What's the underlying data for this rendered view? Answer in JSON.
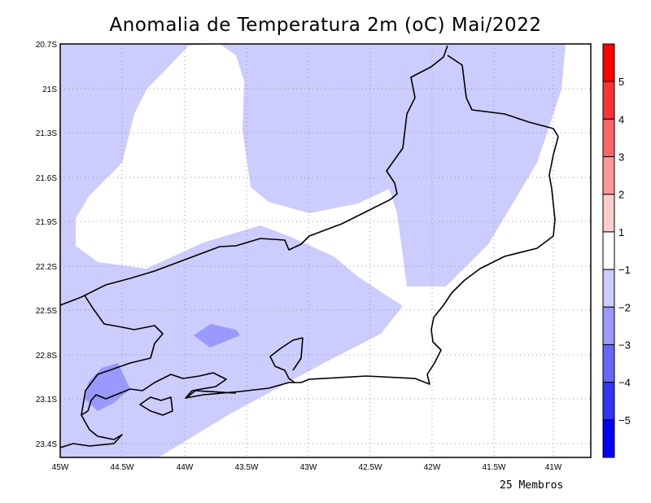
{
  "title": "Anomalia de Temperatura 2m (oC) Mai/2022",
  "footer_note": "25 Membros",
  "map": {
    "lon_range": [
      -45,
      -40.7
    ],
    "lat_range": [
      -23.5,
      -20.7
    ],
    "x_ticks": [
      "45W",
      "44.5W",
      "44W",
      "43.5W",
      "43W",
      "42.5W",
      "42W",
      "41.5W",
      "41W"
    ],
    "y_ticks": [
      "20.7S",
      "21S",
      "21.3S",
      "21.6S",
      "21.9S",
      "22.2S",
      "22.5S",
      "22.8S",
      "23.1S",
      "23.4S"
    ]
  },
  "colorbar": {
    "labels": [
      "5",
      "4",
      "3",
      "2",
      "1",
      "−1",
      "−2",
      "−3",
      "−4",
      "−5"
    ],
    "colors": [
      "#ff0000",
      "#ff3333",
      "#ff6666",
      "#ff9999",
      "#ffcccc",
      "#ffffff",
      "#ccccff",
      "#9999ff",
      "#6666ff",
      "#3333ff",
      "#0000ff"
    ]
  }
}
